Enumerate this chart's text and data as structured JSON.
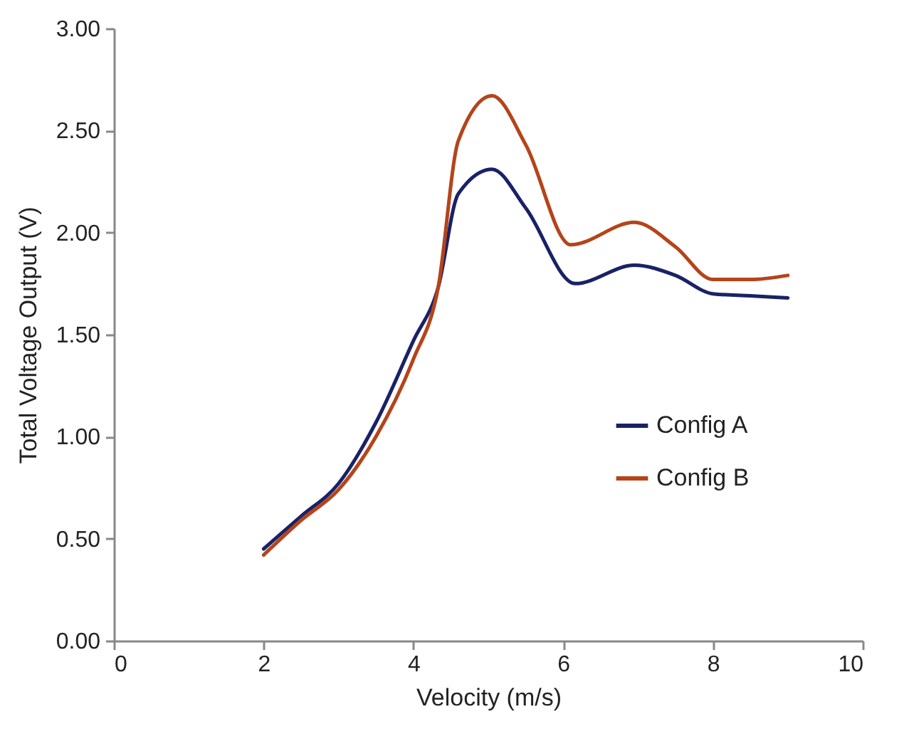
{
  "chart_data": {
    "type": "line",
    "xlabel": "Velocity (m/s)",
    "ylabel": "Total Voltage Output (V)",
    "xlim": [
      0,
      10
    ],
    "xticks": [
      0,
      2,
      4,
      6,
      8,
      10
    ],
    "ylim": [
      0,
      3
    ],
    "yticks": [
      {
        "value": 0,
        "label": "0.00"
      },
      {
        "value": 0.5,
        "label": "0.50"
      },
      {
        "value": 1,
        "label": "1.00"
      },
      {
        "value": 1.5,
        "label": "1.50"
      },
      {
        "value": 2,
        "label": "2.00"
      },
      {
        "value": 2.5,
        "label": "2.50"
      },
      {
        "value": 3,
        "label": "3.00"
      }
    ],
    "grid": false,
    "legend": "right",
    "marker": "none",
    "series": [
      {
        "name": "Config A",
        "color": "#1a2266",
        "x": [
          2,
          2.5,
          3,
          3.5,
          4,
          4.33,
          4.6,
          5.05,
          5.5,
          6.16,
          6.95,
          7.5,
          8,
          8.5,
          9
        ],
        "values": [
          0.45,
          0.61,
          0.77,
          1.07,
          1.47,
          1.73,
          2.19,
          2.31,
          2.12,
          1.75,
          1.84,
          1.79,
          1.7,
          1.69,
          1.68
        ]
      },
      {
        "name": "Config B",
        "color": "#b5441a",
        "x": [
          2,
          2.5,
          3,
          3.5,
          4,
          4.33,
          4.6,
          5.05,
          5.5,
          6.1,
          6.95,
          7.5,
          8,
          8.5,
          9
        ],
        "values": [
          0.42,
          0.59,
          0.74,
          1.0,
          1.38,
          1.73,
          2.45,
          2.67,
          2.43,
          1.94,
          2.05,
          1.93,
          1.77,
          1.77,
          1.79
        ]
      }
    ]
  }
}
